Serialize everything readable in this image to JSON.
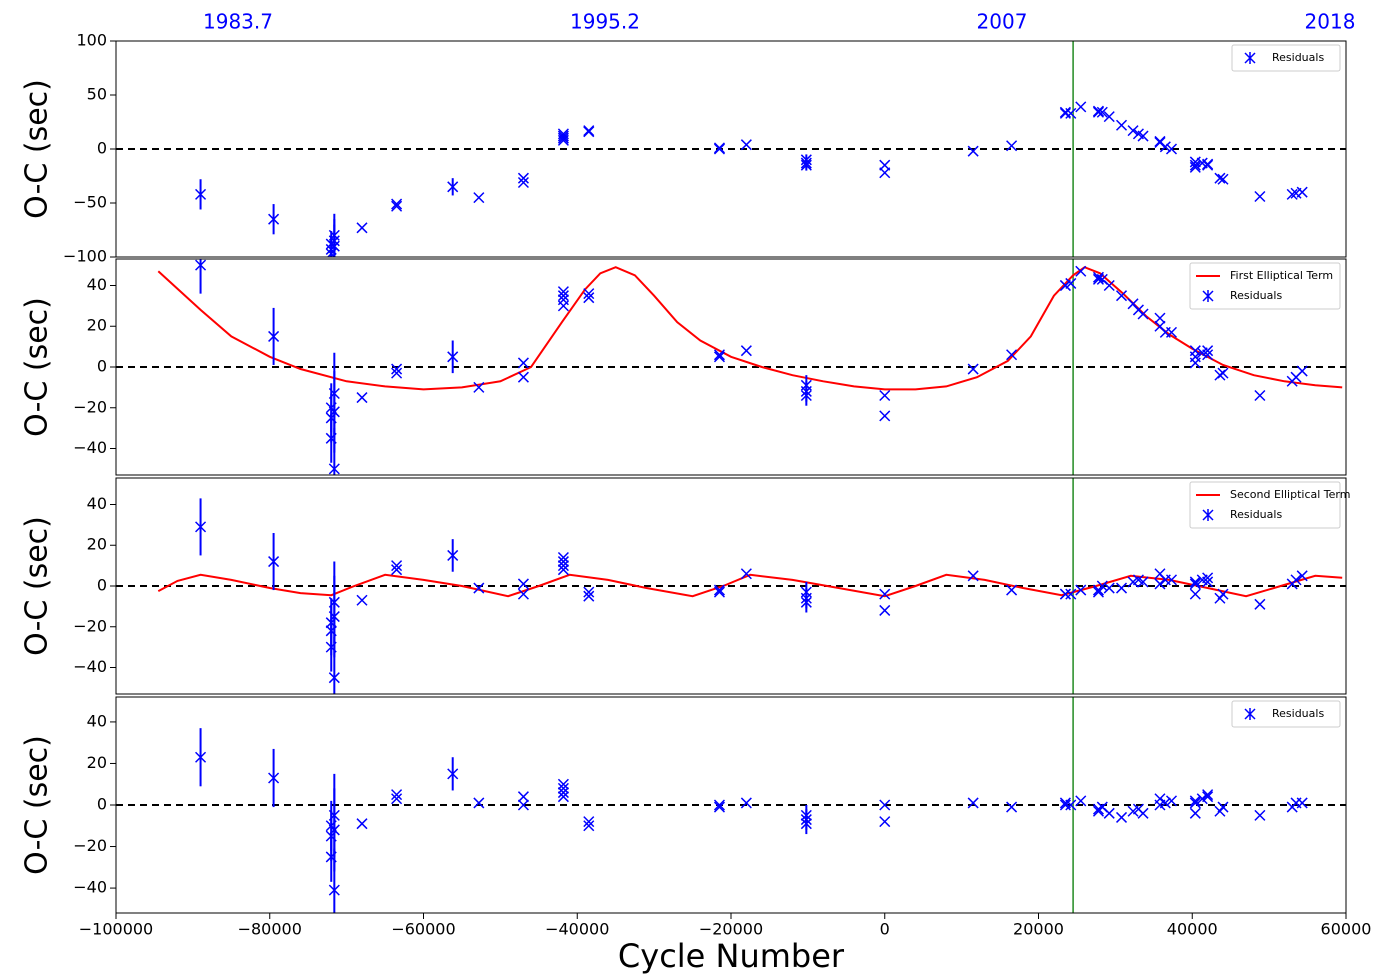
{
  "chart_data": [
    {
      "type": "scatter",
      "ylabel": "O-C (sec)",
      "xlim": [
        -100000,
        60000
      ],
      "ylim": [
        -100,
        100
      ],
      "yticks": [
        {
          "value": -100,
          "label": "−100"
        },
        {
          "value": -50,
          "label": "−50"
        },
        0,
        50,
        100
      ],
      "top_ticks": [
        {
          "value": -84130,
          "label": "1983.7"
        },
        {
          "value": -36390,
          "label": "1995.2"
        },
        {
          "value": 15250,
          "label": "2007"
        },
        {
          "value": 57920,
          "label": "2018"
        }
      ],
      "vline": 24500,
      "vline_color": "#228b22",
      "hline": 0,
      "legend": "upper right",
      "series": [
        {
          "name": "Residuals",
          "type": "scatter",
          "color": "#0000ff",
          "x": [
            -89000,
            -79500,
            -72000,
            -72000,
            -72000,
            -71600,
            -71600,
            -71600,
            -68000,
            -63500,
            -63500,
            -56200,
            -52800,
            -47000,
            -47000,
            -41800,
            -41800,
            -41800,
            -41800,
            -38500,
            -38500,
            -21500,
            -21500,
            -18000,
            -10200,
            -10200,
            -10200,
            0,
            0,
            11500,
            16500,
            23500,
            23500,
            24200,
            25500,
            27800,
            27800,
            28300,
            29200,
            30800,
            32300,
            33000,
            33600,
            35800,
            35800,
            36500,
            37300,
            40400,
            40400,
            40400,
            41300,
            42000,
            42000,
            43600,
            44000,
            48800,
            53000,
            53500,
            54300
          ],
          "values": [
            -42,
            -65,
            -88,
            -93,
            -97,
            -80,
            -85,
            -90,
            -73,
            -51,
            -53,
            -35,
            -45,
            -31,
            -27,
            14,
            10,
            12,
            8,
            17,
            16,
            0,
            1,
            4,
            -10,
            -13,
            -15,
            -15,
            -22,
            -2,
            3,
            33,
            34,
            33,
            39,
            35,
            34,
            34,
            30,
            22,
            17,
            14,
            12,
            7,
            6,
            2,
            0,
            -12,
            -17,
            -15,
            -13,
            -14,
            -15,
            -27,
            -28,
            -44,
            -42,
            -41,
            -40
          ],
          "errors": [
            14,
            14,
            12,
            12,
            12,
            20,
            20,
            20,
            null,
            null,
            null,
            8,
            null,
            null,
            null,
            null,
            null,
            null,
            null,
            null,
            null,
            null,
            null,
            null,
            5,
            5,
            5,
            null,
            null,
            null,
            null,
            null,
            null,
            null,
            null,
            null,
            null,
            null,
            null,
            null,
            null,
            null,
            null,
            null,
            null,
            null,
            null,
            null,
            null,
            null,
            null,
            null,
            null,
            null,
            null,
            null,
            null,
            null,
            null
          ]
        }
      ]
    },
    {
      "type": "scatter",
      "ylabel": "O-C (sec)",
      "xlim": [
        -100000,
        60000
      ],
      "ylim": [
        -53,
        53
      ],
      "yticks": [
        {
          "value": -40,
          "label": "−40"
        },
        {
          "value": -20,
          "label": "−20"
        },
        0,
        20,
        40
      ],
      "vline": 24500,
      "vline_color": "#228b22",
      "hline": 0,
      "legend": "upper right",
      "series": [
        {
          "name": "First Elliptical Term",
          "type": "line",
          "color": "#ff0000",
          "x": [
            -94500,
            -89000,
            -85000,
            -80000,
            -76000,
            -70000,
            -65000,
            -60000,
            -55000,
            -50000,
            -46000,
            -42000,
            -39000,
            -37000,
            -35000,
            -32500,
            -30000,
            -27000,
            -24000,
            -20000,
            -16000,
            -12000,
            -8000,
            -4000,
            0,
            4000,
            8000,
            12000,
            16000,
            19000,
            22000,
            24500,
            26000,
            28000,
            31000,
            34000,
            37000,
            40000,
            44000,
            48000,
            52000,
            56000,
            59500
          ],
          "values": [
            47,
            28,
            15,
            5,
            -1,
            -7,
            -9.5,
            -11,
            -10,
            -7,
            0,
            22,
            38,
            46,
            49,
            45,
            35,
            22,
            13,
            5,
            0,
            -4,
            -7,
            -9.5,
            -11,
            -11,
            -9.5,
            -5,
            3,
            15,
            35,
            45,
            49,
            46,
            36,
            25,
            16,
            9,
            1,
            -4,
            -7,
            -9,
            -10
          ]
        },
        {
          "name": "Residuals",
          "type": "scatter",
          "color": "#0000ff",
          "x": [
            -89000,
            -79500,
            -72000,
            -72000,
            -72000,
            -71600,
            -71600,
            -71600,
            -68000,
            -63500,
            -63500,
            -56200,
            -52800,
            -47000,
            -47000,
            -41800,
            -41800,
            -41800,
            -41800,
            -38500,
            -38500,
            -21500,
            -21500,
            -18000,
            -10200,
            -10200,
            -10200,
            0,
            0,
            11500,
            16500,
            23500,
            23500,
            24200,
            25500,
            27800,
            27800,
            28300,
            29200,
            30800,
            32300,
            33000,
            33600,
            35800,
            35800,
            36500,
            37300,
            40400,
            40400,
            40400,
            41300,
            42000,
            42000,
            43600,
            44000,
            48800,
            53000,
            53500,
            54300
          ],
          "values": [
            50,
            15,
            -20,
            -25,
            -35,
            -13,
            -22,
            -50,
            -15,
            -1,
            -3,
            5,
            -10,
            -5,
            2,
            37,
            33,
            30,
            35,
            36,
            34,
            6,
            5,
            8,
            -9,
            -12,
            -14,
            -14,
            -24,
            -1,
            6,
            40,
            40,
            41,
            47,
            44,
            43,
            43,
            40,
            35,
            31,
            28,
            26,
            24,
            20,
            17,
            17,
            8,
            5,
            2,
            7,
            8,
            6,
            -4,
            -3,
            -14,
            -7,
            -5,
            -2
          ],
          "errors": [
            14,
            14,
            12,
            12,
            12,
            20,
            20,
            20,
            null,
            null,
            null,
            8,
            null,
            null,
            null,
            null,
            null,
            null,
            null,
            null,
            null,
            null,
            null,
            null,
            5,
            5,
            5,
            null,
            null,
            null,
            null,
            null,
            null,
            null,
            null,
            null,
            null,
            null,
            null,
            null,
            null,
            null,
            null,
            null,
            null,
            null,
            null,
            null,
            null,
            null,
            null,
            null,
            null,
            null,
            null,
            null,
            null,
            null,
            null
          ]
        }
      ]
    },
    {
      "type": "scatter",
      "ylabel": "O-C (sec)",
      "xlim": [
        -100000,
        60000
      ],
      "ylim": [
        -53,
        53
      ],
      "yticks": [
        {
          "value": -40,
          "label": "−40"
        },
        {
          "value": -20,
          "label": "−20"
        },
        0,
        20,
        40
      ],
      "vline": 24500,
      "vline_color": "#228b22",
      "hline": 0,
      "legend": "upper right",
      "series": [
        {
          "name": "Second Elliptical Term",
          "type": "line",
          "color": "#ff0000",
          "x": [
            -94500,
            -92000,
            -89000,
            -85000,
            -80000,
            -76000,
            -72000,
            -69000,
            -65000,
            -60000,
            -55000,
            -49000,
            -45000,
            -41000,
            -36000,
            -31000,
            -25000,
            -21000,
            -17500,
            -12000,
            -6000,
            0,
            4000,
            8000,
            13000,
            18000,
            23000,
            27500,
            32000,
            37000,
            42000,
            47000,
            51500,
            56000,
            59500
          ],
          "values": [
            -2.5,
            2.5,
            5.5,
            3,
            -1,
            -3.5,
            -4.5,
            0,
            5.5,
            3,
            0,
            -5,
            0,
            5.5,
            3,
            -1,
            -5,
            0,
            5.5,
            3,
            -1,
            -5,
            0,
            5.5,
            3,
            -1,
            -4.5,
            0,
            5,
            3,
            -1,
            -5,
            0,
            5,
            4
          ]
        },
        {
          "name": "Residuals",
          "type": "scatter",
          "color": "#0000ff",
          "x": [
            -89000,
            -79500,
            -72000,
            -72000,
            -72000,
            -71600,
            -71600,
            -71600,
            -68000,
            -63500,
            -63500,
            -56200,
            -52800,
            -47000,
            -47000,
            -41800,
            -41800,
            -41800,
            -41800,
            -38500,
            -38500,
            -21500,
            -21500,
            -18000,
            -10200,
            -10200,
            -10200,
            0,
            0,
            11500,
            16500,
            23500,
            23500,
            24200,
            25500,
            27800,
            27800,
            28300,
            29200,
            30800,
            32300,
            33000,
            33600,
            35800,
            35800,
            36500,
            37300,
            40400,
            40400,
            40400,
            41300,
            42000,
            42000,
            43600,
            44000,
            48800,
            53000,
            53500,
            54300
          ],
          "values": [
            29,
            12,
            -18,
            -22,
            -30,
            -8,
            -15,
            -45,
            -7,
            10,
            8,
            15,
            -1,
            -4,
            1,
            14,
            10,
            12,
            8,
            -3,
            -5,
            -2,
            -3,
            6,
            -3,
            -6,
            -8,
            -4,
            -12,
            5,
            -2,
            -4,
            -4,
            -4,
            -2,
            -2,
            -3,
            0,
            -1,
            -1,
            2,
            3,
            2,
            6,
            1,
            3,
            3,
            1,
            -4,
            2,
            3,
            4,
            2,
            -6,
            -4,
            -9,
            1,
            3,
            5
          ],
          "errors": [
            14,
            14,
            12,
            12,
            12,
            20,
            20,
            20,
            null,
            null,
            null,
            8,
            null,
            null,
            null,
            null,
            null,
            null,
            null,
            null,
            null,
            null,
            null,
            null,
            5,
            5,
            5,
            null,
            null,
            null,
            null,
            null,
            null,
            null,
            null,
            null,
            null,
            null,
            null,
            null,
            null,
            null,
            null,
            null,
            null,
            null,
            null,
            null,
            null,
            null,
            null,
            null,
            null,
            null,
            null,
            null,
            null,
            null,
            null
          ]
        }
      ]
    },
    {
      "type": "scatter",
      "ylabel": "O-C (sec)",
      "xlabel": "Cycle Number",
      "xlim": [
        -100000,
        60000
      ],
      "ylim": [
        -52,
        52
      ],
      "xticks": [
        {
          "value": -100000,
          "label": "−100000"
        },
        {
          "value": -80000,
          "label": "−80000"
        },
        {
          "value": -60000,
          "label": "−60000"
        },
        {
          "value": -40000,
          "label": "−40000"
        },
        {
          "value": -20000,
          "label": "−20000"
        },
        0,
        20000,
        40000,
        60000
      ],
      "yticks": [
        {
          "value": -40,
          "label": "−40"
        },
        {
          "value": -20,
          "label": "−20"
        },
        0,
        20,
        40
      ],
      "vline": 24500,
      "vline_color": "#228b22",
      "hline": 0,
      "legend": "upper right",
      "series": [
        {
          "name": "Residuals",
          "type": "scatter",
          "color": "#0000ff",
          "x": [
            -89000,
            -79500,
            -72000,
            -72000,
            -72000,
            -71600,
            -71600,
            -71600,
            -68000,
            -63500,
            -63500,
            -56200,
            -52800,
            -47000,
            -47000,
            -41800,
            -41800,
            -41800,
            -41800,
            -38500,
            -38500,
            -21500,
            -21500,
            -18000,
            -10200,
            -10200,
            -10200,
            0,
            0,
            11500,
            16500,
            23500,
            23500,
            24200,
            25500,
            27800,
            27800,
            28300,
            29200,
            30800,
            32300,
            33000,
            33600,
            35800,
            35800,
            36500,
            37300,
            40400,
            40400,
            40400,
            41300,
            42000,
            42000,
            43600,
            44000,
            48800,
            53000,
            53500,
            54300
          ],
          "values": [
            23,
            13,
            -15,
            -10,
            -25,
            -5,
            -12,
            -41,
            -9,
            5,
            3,
            15,
            1,
            0,
            4,
            10,
            6,
            4,
            8,
            -8,
            -10,
            -1,
            0,
            1,
            -5,
            -7,
            -9,
            0,
            -8,
            1,
            -1,
            0,
            1,
            0,
            2,
            -2,
            -3,
            -1,
            -4,
            -6,
            -3,
            -2,
            -4,
            3,
            0,
            1,
            2,
            1,
            -4,
            2,
            3,
            5,
            4,
            -3,
            -1,
            -5,
            -1,
            1,
            1
          ],
          "errors": [
            14,
            14,
            12,
            12,
            12,
            20,
            20,
            20,
            null,
            null,
            null,
            8,
            null,
            null,
            null,
            null,
            null,
            null,
            null,
            null,
            null,
            null,
            null,
            null,
            5,
            5,
            5,
            null,
            null,
            null,
            null,
            null,
            null,
            null,
            null,
            null,
            null,
            null,
            null,
            null,
            null,
            null,
            null,
            null,
            null,
            null,
            null,
            null,
            null,
            null,
            null,
            null,
            null,
            null,
            null,
            null,
            null,
            null,
            null
          ]
        }
      ]
    }
  ]
}
